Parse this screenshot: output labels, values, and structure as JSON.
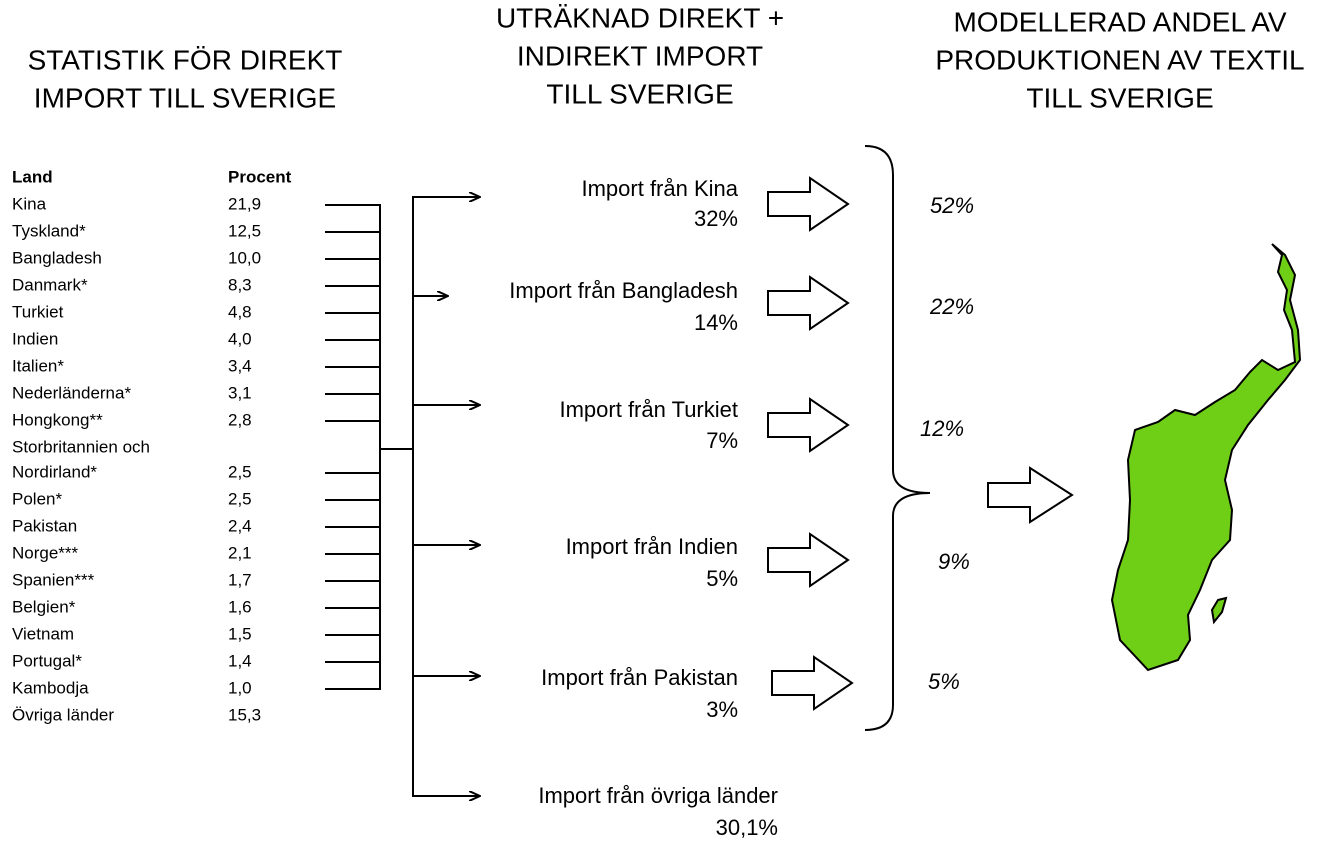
{
  "headings": [
    [
      "STATISTIK FÖR DIREKT",
      "IMPORT TILL SVERIGE"
    ],
    [
      "UTRÄKNAD DIREKT +",
      "INDIREKT IMPORT",
      "TILL SVERIGE"
    ],
    [
      "MODELLERAD ANDEL AV",
      "PRODUKTIONEN AV TEXTIL",
      "TILL SVERIGE"
    ]
  ],
  "table": {
    "header": [
      "Land",
      "Procent"
    ],
    "rows": [
      {
        "land": [
          "Kina"
        ],
        "procent": "21,9"
      },
      {
        "land": [
          "Tyskland*"
        ],
        "procent": "12,5"
      },
      {
        "land": [
          "Bangladesh"
        ],
        "procent": "10,0"
      },
      {
        "land": [
          "Danmark*"
        ],
        "procent": "8,3"
      },
      {
        "land": [
          "Turkiet"
        ],
        "procent": "4,8"
      },
      {
        "land": [
          "Indien"
        ],
        "procent": "4,0"
      },
      {
        "land": [
          "Italien*"
        ],
        "procent": "3,4"
      },
      {
        "land": [
          "Nederländerna*"
        ],
        "procent": "3,1"
      },
      {
        "land": [
          "Hongkong**"
        ],
        "procent": "2,8"
      },
      {
        "land": [
          "Storbritannien och",
          "Nordirland*"
        ],
        "procent": "2,5"
      },
      {
        "land": [
          "Polen*"
        ],
        "procent": "2,5"
      },
      {
        "land": [
          "Pakistan"
        ],
        "procent": "2,4"
      },
      {
        "land": [
          "Norge***"
        ],
        "procent": "2,1"
      },
      {
        "land": [
          "Spanien***"
        ],
        "procent": "1,7"
      },
      {
        "land": [
          "Belgien*"
        ],
        "procent": "1,6"
      },
      {
        "land": [
          "Vietnam"
        ],
        "procent": "1,5"
      },
      {
        "land": [
          "Portugal*"
        ],
        "procent": "1,4"
      },
      {
        "land": [
          "Kambodja"
        ],
        "procent": "1,0"
      },
      {
        "land": [
          "Övriga länder"
        ],
        "procent": "15,3"
      }
    ]
  },
  "imports": [
    {
      "label": "Import från Kina",
      "share": "32%"
    },
    {
      "label": "Import från Bangladesh",
      "share": "14%"
    },
    {
      "label": "Import från Turkiet",
      "share": "7%"
    },
    {
      "label": "Import från Indien",
      "share": "5%"
    },
    {
      "label": "Import från Pakistan",
      "share": "3%"
    },
    {
      "label": "Import från övriga länder",
      "share": "30,1%"
    }
  ],
  "modelled": [
    "52%",
    "22%",
    "12%",
    "9%",
    "5%"
  ]
}
